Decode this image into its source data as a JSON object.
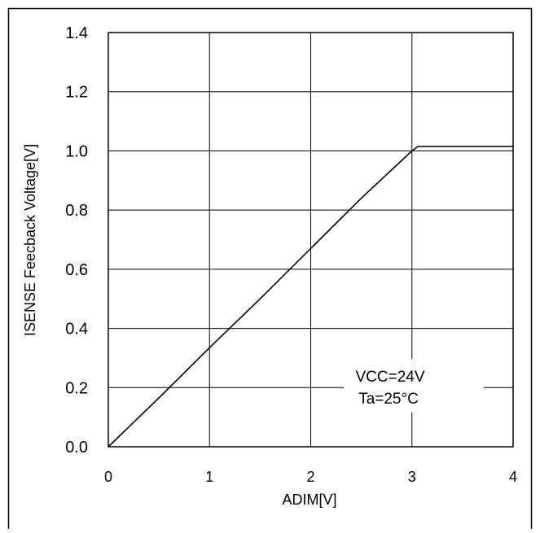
{
  "chart_data": {
    "type": "line",
    "title": "",
    "xlabel": "ADIM[V]",
    "ylabel": "ISENSE Feecback Voltage[V]",
    "xlim": [
      0,
      4
    ],
    "ylim": [
      0.0,
      1.4
    ],
    "xticks": [
      "0",
      "1",
      "2",
      "3",
      "4"
    ],
    "yticks": [
      "0.0",
      "0.2",
      "0.4",
      "0.6",
      "0.8",
      "1.0",
      "1.2",
      "1.4"
    ],
    "grid": true,
    "annotations": [
      "VCC=24V",
      "Ta=25°C"
    ],
    "series": [
      {
        "x": [
          0.0,
          0.5,
          1.0,
          1.5,
          2.0,
          2.5,
          3.0,
          3.06,
          3.5,
          4.0
        ],
        "y": [
          0.0,
          0.165,
          0.335,
          0.5,
          0.67,
          0.84,
          1.0,
          1.015,
          1.015,
          1.015
        ]
      }
    ]
  },
  "colors": {
    "line": "#000000",
    "grid": "#000000",
    "background": "#ffffff"
  }
}
